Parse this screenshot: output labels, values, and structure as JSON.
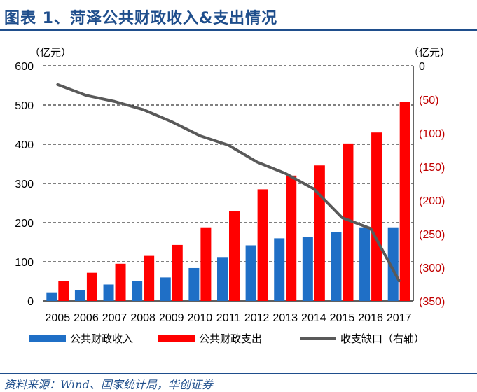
{
  "title": "图表 1、菏泽公共财政收入&支出情况",
  "source": "资料来源：Wind、国家统计局，华创证券",
  "chart_data": {
    "type": "bar",
    "title": "图表 1、菏泽公共财政收入&支出情况",
    "categories": [
      "2005",
      "2006",
      "2007",
      "2008",
      "2009",
      "2010",
      "2011",
      "2012",
      "2013",
      "2014",
      "2015",
      "2016",
      "2017"
    ],
    "series": [
      {
        "name": "公共财政收入",
        "type": "bar",
        "axis": "left",
        "color": "#1f6fc6",
        "values": [
          22,
          28,
          42,
          50,
          60,
          84,
          112,
          142,
          160,
          163,
          176,
          188,
          188
        ]
      },
      {
        "name": "公共财政支出",
        "type": "bar",
        "axis": "left",
        "color": "#ff0000",
        "values": [
          50,
          72,
          95,
          115,
          143,
          188,
          230,
          285,
          320,
          346,
          402,
          430,
          508
        ]
      },
      {
        "name": "收支缺口（右轴）",
        "type": "line",
        "axis": "right",
        "color": "#595959",
        "values": [
          -28,
          -44,
          -53,
          -65,
          -83,
          -104,
          -118,
          -143,
          -160,
          -183,
          -226,
          -242,
          -320
        ]
      }
    ],
    "left_axis": {
      "unit": "（亿元）",
      "ylim": [
        0,
        600
      ],
      "ticks": [
        "0",
        "100",
        "200",
        "300",
        "400",
        "500",
        "600"
      ]
    },
    "right_axis": {
      "unit": "（亿元）",
      "ylim": [
        -350,
        0
      ],
      "ticks": [
        "0",
        "(50)",
        "(100)",
        "(150)",
        "(200)",
        "(250)",
        "(300)",
        "(350)"
      ],
      "tick_color": "#c00000"
    },
    "grid": "horizontal dashed",
    "legend_position": "bottom"
  }
}
